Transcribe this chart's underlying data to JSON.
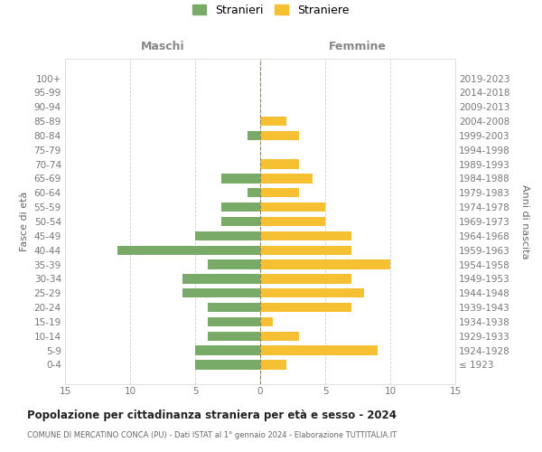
{
  "age_groups": [
    "100+",
    "95-99",
    "90-94",
    "85-89",
    "80-84",
    "75-79",
    "70-74",
    "65-69",
    "60-64",
    "55-59",
    "50-54",
    "45-49",
    "40-44",
    "35-39",
    "30-34",
    "25-29",
    "20-24",
    "15-19",
    "10-14",
    "5-9",
    "0-4"
  ],
  "birth_years": [
    "≤ 1923",
    "1924-1928",
    "1929-1933",
    "1934-1938",
    "1939-1943",
    "1944-1948",
    "1949-1953",
    "1954-1958",
    "1959-1963",
    "1964-1968",
    "1969-1973",
    "1974-1978",
    "1979-1983",
    "1984-1988",
    "1989-1993",
    "1994-1998",
    "1999-2003",
    "2004-2008",
    "2009-2013",
    "2014-2018",
    "2019-2023"
  ],
  "maschi": [
    0,
    0,
    0,
    0,
    1,
    0,
    0,
    3,
    1,
    3,
    3,
    5,
    11,
    4,
    6,
    6,
    4,
    4,
    4,
    5,
    5
  ],
  "femmine": [
    0,
    0,
    0,
    2,
    3,
    0,
    3,
    4,
    3,
    5,
    5,
    7,
    7,
    10,
    7,
    8,
    7,
    1,
    3,
    9,
    2
  ],
  "maschi_color": "#7aaa68",
  "femmine_color": "#f5c132",
  "title": "Popolazione per cittadinanza straniera per età e sesso - 2024",
  "subtitle": "COMUNE DI MERCATINO CONCA (PU) - Dati ISTAT al 1° gennaio 2024 - Elaborazione TUTTITALIA.IT",
  "xlabel_left": "Maschi",
  "xlabel_right": "Femmine",
  "ylabel_left": "Fasce di età",
  "ylabel_right": "Anni di nascita",
  "legend_maschi": "Stranieri",
  "legend_femmine": "Straniere",
  "xlim": 15,
  "background_color": "#ffffff",
  "grid_color": "#cccccc",
  "bar_height": 0.65
}
